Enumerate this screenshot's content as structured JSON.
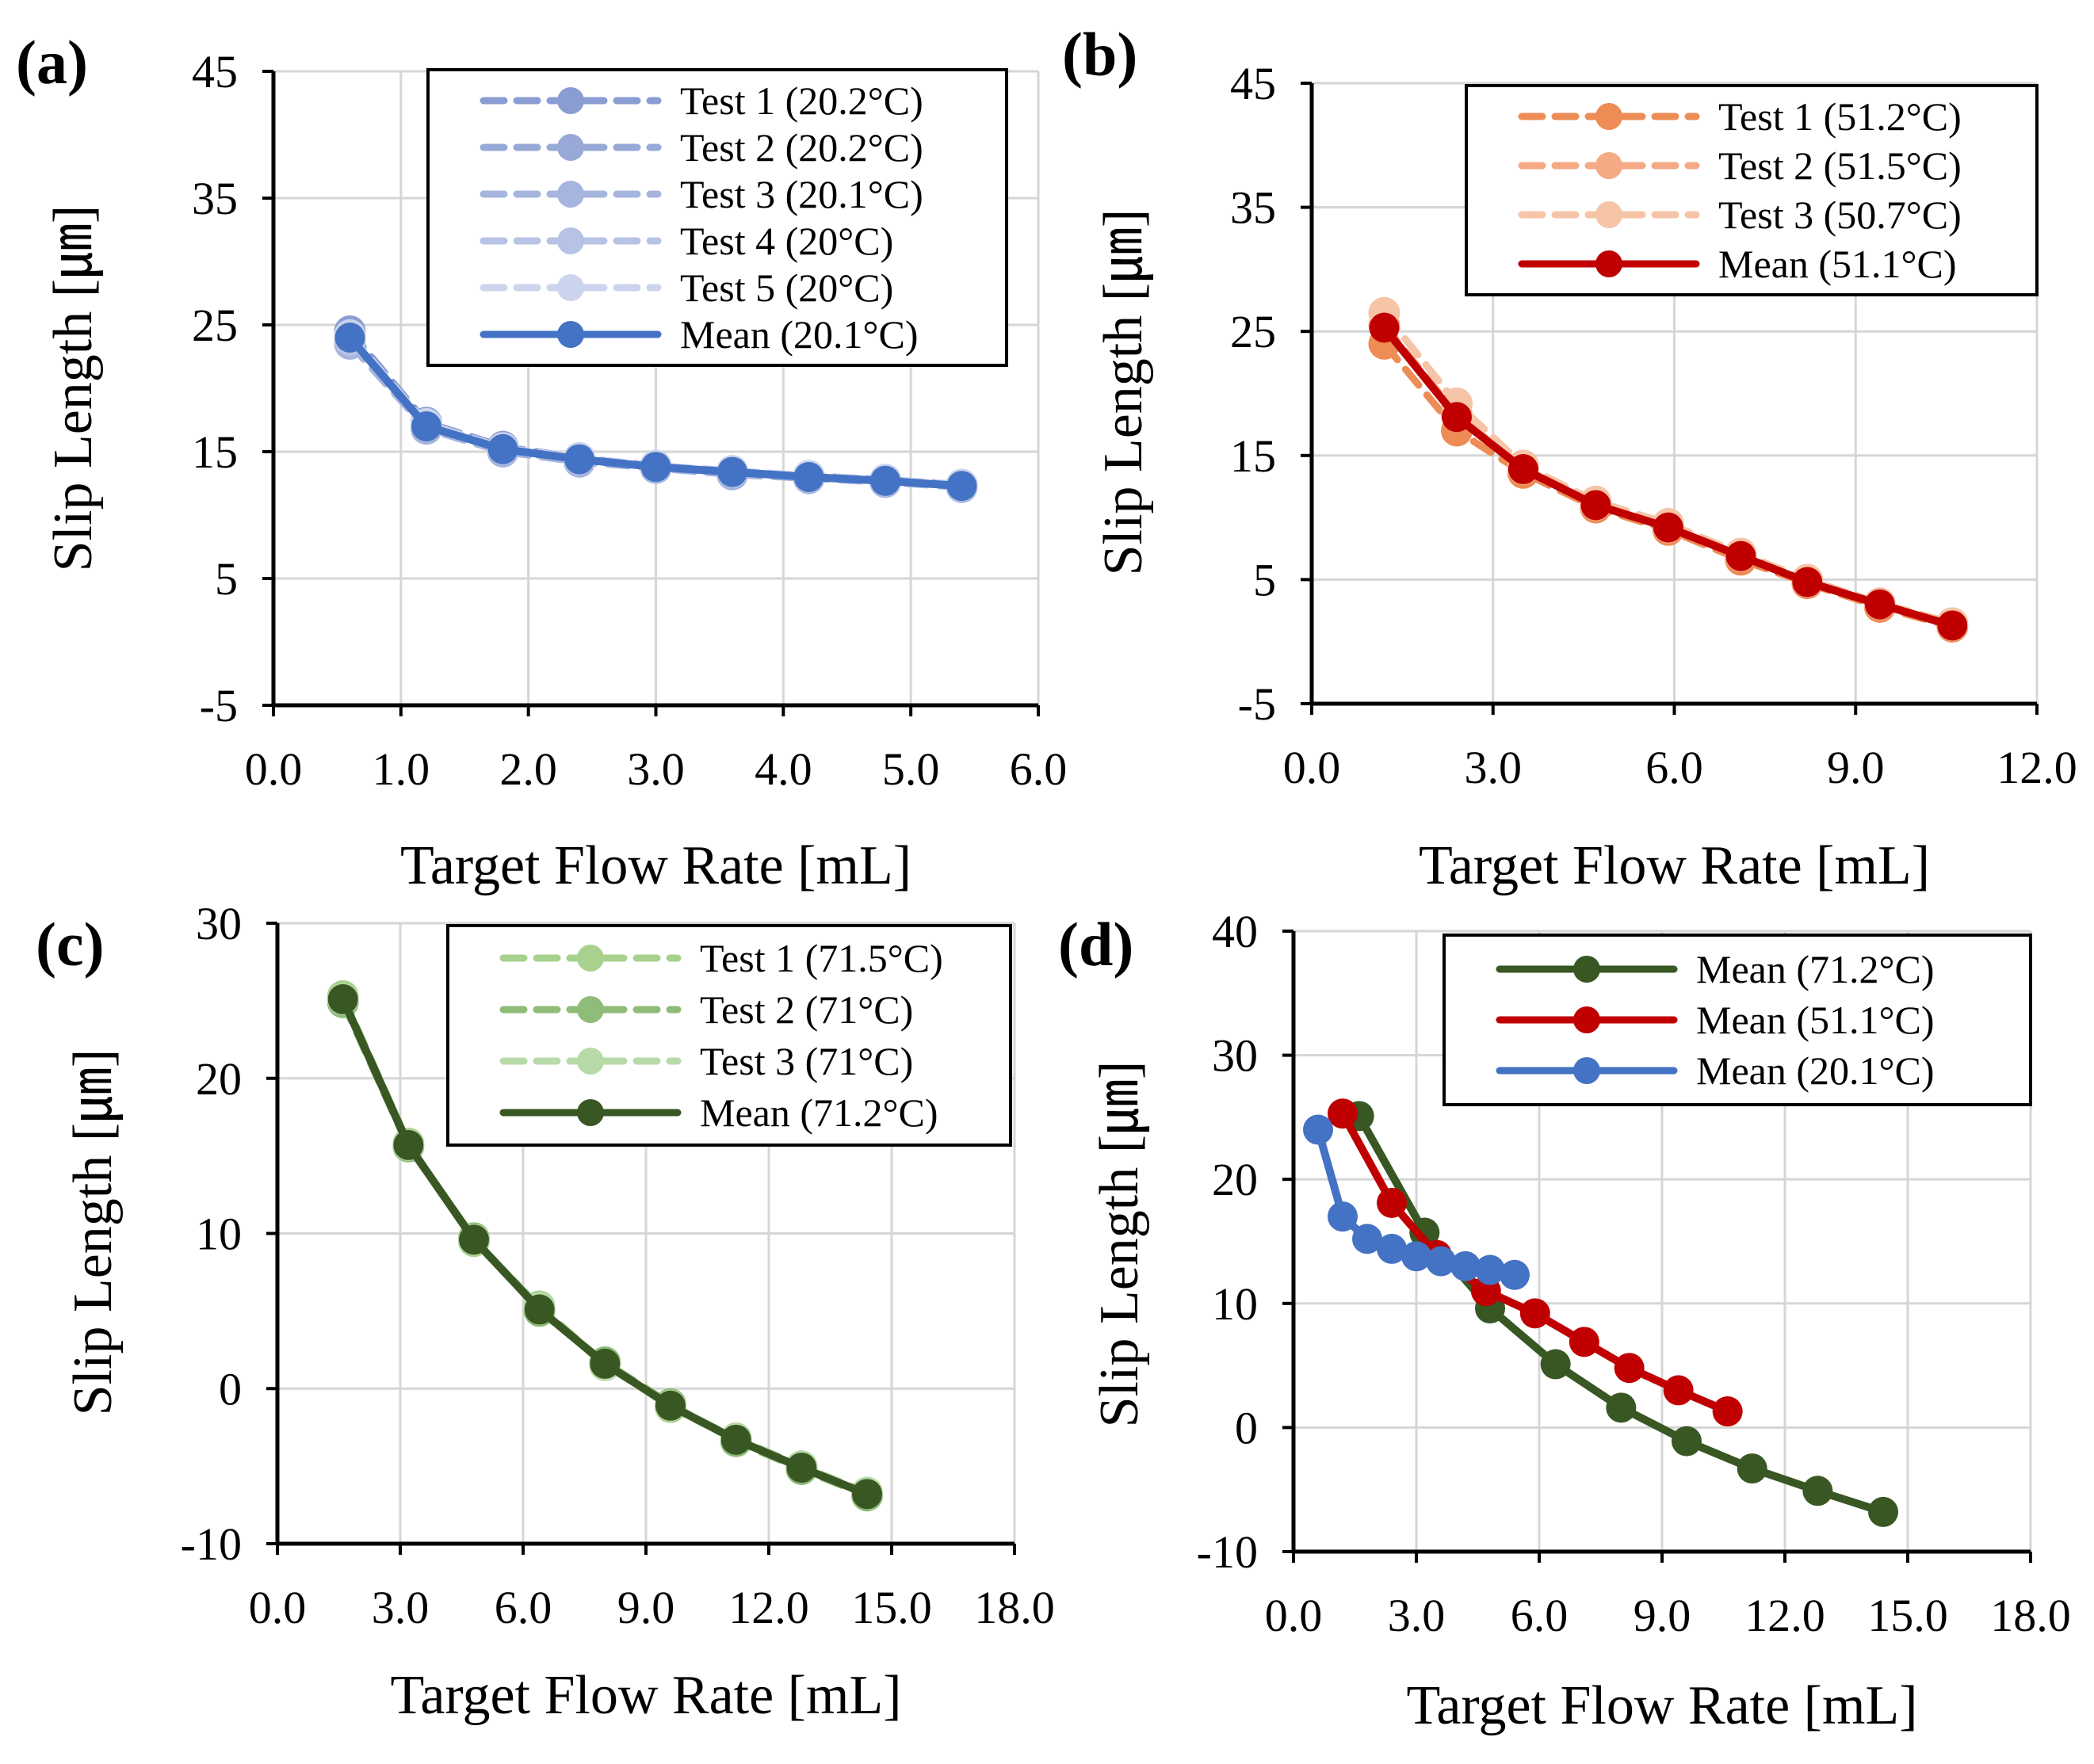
{
  "figure": {
    "xlabel": "Target Flow Rate [mL]",
    "ylabel": "Slip Length [㎛]"
  },
  "chart_data": [
    {
      "panel": "(a)",
      "type": "line",
      "xlabel": "Target Flow Rate [mL]",
      "ylabel": "Slip Length [㎛]",
      "xlim": [
        0,
        6
      ],
      "ylim": [
        -5,
        45
      ],
      "x_ticks": [
        "0.0",
        "1.0",
        "2.0",
        "3.0",
        "4.0",
        "5.0",
        "6.0"
      ],
      "y_ticks": [
        "-5",
        "5",
        "15",
        "25",
        "35",
        "45"
      ],
      "grid": true,
      "legend_position": "top-right",
      "series": [
        {
          "name": "Test 1 (20.2°C)",
          "color": "#8a9dd3",
          "style": "dashed",
          "x": [
            0.6,
            1.2,
            1.8,
            2.4,
            3.0,
            3.6,
            4.2,
            4.8,
            5.4
          ],
          "values": [
            24.5,
            17.3,
            15.4,
            14.5,
            13.9,
            13.4,
            13.1,
            12.8,
            12.4
          ]
        },
        {
          "name": "Test 2 (20.2°C)",
          "color": "#98a9d8",
          "style": "dashed",
          "x": [
            0.6,
            1.2,
            1.8,
            2.4,
            3.0,
            3.6,
            4.2,
            4.8,
            5.4
          ],
          "values": [
            24.0,
            17.0,
            15.1,
            14.3,
            13.8,
            13.3,
            13.0,
            12.7,
            12.3
          ]
        },
        {
          "name": "Test 3 (20.1°C)",
          "color": "#a6b5dd",
          "style": "dashed",
          "x": [
            0.6,
            1.2,
            1.8,
            2.4,
            3.0,
            3.6,
            4.2,
            4.8,
            5.4
          ],
          "values": [
            23.5,
            16.8,
            15.0,
            14.2,
            13.7,
            13.2,
            12.9,
            12.6,
            12.2
          ]
        },
        {
          "name": "Test 4 (20°C)",
          "color": "#b7c3e4",
          "style": "dashed",
          "x": [
            0.6,
            1.2,
            1.8,
            2.4,
            3.0,
            3.6,
            4.2,
            4.8,
            5.4
          ],
          "values": [
            23.8,
            17.1,
            15.2,
            14.4,
            13.8,
            13.4,
            13.0,
            12.7,
            12.3
          ]
        },
        {
          "name": "Test 5 (20°C)",
          "color": "#cbd4ec",
          "style": "dashed",
          "x": [
            0.6,
            1.2,
            1.8,
            2.4,
            3.0,
            3.6,
            4.2,
            4.8,
            5.4
          ],
          "values": [
            24.2,
            17.2,
            15.3,
            14.5,
            13.9,
            13.5,
            13.1,
            12.8,
            12.4
          ]
        },
        {
          "name": "Mean (20.1°C)",
          "color": "#4472c4",
          "style": "solid",
          "x": [
            0.6,
            1.2,
            1.8,
            2.4,
            3.0,
            3.6,
            4.2,
            4.8,
            5.4
          ],
          "values": [
            24.0,
            17.0,
            15.2,
            14.4,
            13.8,
            13.4,
            13.0,
            12.7,
            12.3
          ]
        }
      ]
    },
    {
      "panel": "(b)",
      "type": "line",
      "xlabel": "Target Flow Rate [mL]",
      "ylabel": "Slip Length [㎛]",
      "xlim": [
        0,
        12
      ],
      "ylim": [
        -5,
        45
      ],
      "x_ticks": [
        "0.0",
        "3.0",
        "6.0",
        "9.0",
        "12.0"
      ],
      "y_ticks": [
        "-5",
        "5",
        "15",
        "25",
        "35",
        "45"
      ],
      "grid": true,
      "legend_position": "top-right",
      "series": [
        {
          "name": "Test 1 (51.2°C)",
          "color": "#ed8c55",
          "style": "dashed",
          "x": [
            1.2,
            2.4,
            3.5,
            4.7,
            5.9,
            7.1,
            8.2,
            9.4,
            10.6
          ],
          "values": [
            24.0,
            17.0,
            13.6,
            10.8,
            9.0,
            6.6,
            4.7,
            2.8,
            1.2
          ]
        },
        {
          "name": "Test 2 (51.5°C)",
          "color": "#f3aa85",
          "style": "dashed",
          "x": [
            1.2,
            2.4,
            3.5,
            4.7,
            5.9,
            7.1,
            8.2,
            9.4,
            10.6
          ],
          "values": [
            25.5,
            18.3,
            13.9,
            11.0,
            9.2,
            6.9,
            4.8,
            3.0,
            1.3
          ]
        },
        {
          "name": "Test 3 (50.7°C)",
          "color": "#f6c4a6",
          "style": "dashed",
          "x": [
            1.2,
            2.4,
            3.5,
            4.7,
            5.9,
            7.1,
            8.2,
            9.4,
            10.6
          ],
          "values": [
            26.5,
            19.2,
            14.2,
            11.3,
            9.5,
            7.1,
            5.0,
            3.1,
            1.5
          ]
        },
        {
          "name": "Mean (51.1°C)",
          "color": "#c00000",
          "style": "solid",
          "x": [
            1.2,
            2.4,
            3.5,
            4.7,
            5.9,
            7.1,
            8.2,
            9.4,
            10.6
          ],
          "values": [
            25.3,
            18.1,
            13.9,
            11.0,
            9.2,
            6.9,
            4.8,
            3.0,
            1.3
          ]
        }
      ]
    },
    {
      "panel": "(c)",
      "type": "line",
      "xlabel": "Target Flow Rate [mL]",
      "ylabel": "Slip Length [㎛]",
      "xlim": [
        0,
        18
      ],
      "ylim": [
        -10,
        30
      ],
      "x_ticks": [
        "0.0",
        "3.0",
        "6.0",
        "9.0",
        "12.0",
        "15.0",
        "18.0"
      ],
      "y_ticks": [
        "-10",
        "0",
        "10",
        "20",
        "30"
      ],
      "grid": true,
      "legend_position": "top-right",
      "series": [
        {
          "name": "Test 1 (71.5°C)",
          "color": "#a9d18e",
          "style": "dashed",
          "x": [
            1.6,
            3.2,
            4.8,
            6.4,
            8.0,
            9.6,
            11.2,
            12.8,
            14.4
          ],
          "values": [
            25.3,
            15.8,
            9.5,
            5.3,
            1.6,
            -1.2,
            -3.3,
            -5.1,
            -6.8
          ]
        },
        {
          "name": "Test 2 (71°C)",
          "color": "#8fbc79",
          "style": "dashed",
          "x": [
            1.6,
            3.2,
            4.8,
            6.4,
            8.0,
            9.6,
            11.2,
            12.8,
            14.4
          ],
          "values": [
            24.9,
            15.6,
            9.7,
            5.0,
            1.7,
            -1.0,
            -3.4,
            -5.2,
            -6.9
          ]
        },
        {
          "name": "Test 3 (71°C)",
          "color": "#b8d9a8",
          "style": "dashed",
          "x": [
            1.6,
            3.2,
            4.8,
            6.4,
            8.0,
            9.6,
            11.2,
            12.8,
            14.4
          ],
          "values": [
            25.1,
            15.7,
            9.6,
            5.2,
            1.5,
            -1.1,
            -3.2,
            -5.0,
            -6.7
          ]
        },
        {
          "name": "Mean (71.2°C)",
          "color": "#385723",
          "style": "solid",
          "x": [
            1.6,
            3.2,
            4.8,
            6.4,
            8.0,
            9.6,
            11.2,
            12.8,
            14.4
          ],
          "values": [
            25.1,
            15.7,
            9.6,
            5.1,
            1.6,
            -1.1,
            -3.3,
            -5.1,
            -6.8
          ]
        }
      ]
    },
    {
      "panel": "(d)",
      "type": "line",
      "xlabel": "Target Flow Rate [mL]",
      "ylabel": "Slip Length [㎛]",
      "xlim": [
        0,
        18
      ],
      "ylim": [
        -10,
        40
      ],
      "x_ticks": [
        "0.0",
        "3.0",
        "6.0",
        "9.0",
        "12.0",
        "15.0",
        "18.0"
      ],
      "y_ticks": [
        "-10",
        "0",
        "10",
        "20",
        "30",
        "40"
      ],
      "grid": true,
      "legend_position": "top-right",
      "series": [
        {
          "name": "Mean (71.2°C)",
          "color": "#385723",
          "style": "solid",
          "x": [
            1.6,
            3.2,
            4.8,
            6.4,
            8.0,
            9.6,
            11.2,
            12.8,
            14.4
          ],
          "values": [
            25.1,
            15.7,
            9.6,
            5.1,
            1.6,
            -1.1,
            -3.3,
            -5.1,
            -6.8
          ]
        },
        {
          "name": "Mean (51.1°C)",
          "color": "#c00000",
          "style": "solid",
          "x": [
            1.2,
            2.4,
            3.5,
            4.7,
            5.9,
            7.1,
            8.2,
            9.4,
            10.6
          ],
          "values": [
            25.3,
            18.1,
            13.9,
            11.0,
            9.2,
            6.9,
            4.8,
            3.0,
            1.3
          ]
        },
        {
          "name": "Mean (20.1°C)",
          "color": "#4472c4",
          "style": "solid",
          "x": [
            0.6,
            1.2,
            1.8,
            2.4,
            3.0,
            3.6,
            4.2,
            4.8,
            5.4
          ],
          "values": [
            24.0,
            17.0,
            15.2,
            14.4,
            13.8,
            13.4,
            13.0,
            12.7,
            12.3
          ]
        }
      ]
    }
  ]
}
